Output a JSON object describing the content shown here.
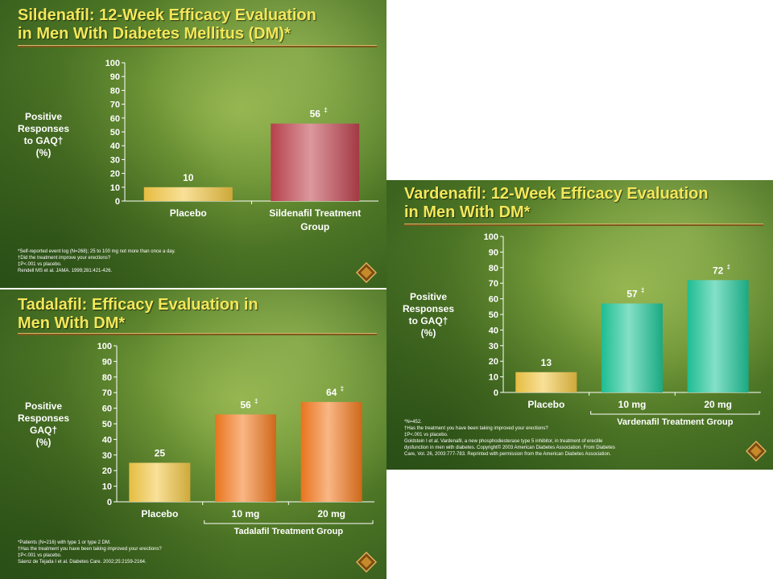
{
  "chart_data": [
    {
      "type": "bar",
      "title_lines": [
        "Sildenafil: 12-Week Efficacy Evaluation",
        "in Men With Diabetes Mellitus (DM)*"
      ],
      "ylabel_lines": [
        "Positive",
        "Responses",
        "to GAQ†",
        "(%)"
      ],
      "categories": [
        "Placebo",
        "Sildenafil Treatment Group"
      ],
      "values": [
        10,
        56
      ],
      "data_labels": [
        "10",
        "56"
      ],
      "significance": [
        "",
        "‡"
      ],
      "yticks": [
        0,
        10,
        20,
        30,
        40,
        50,
        60,
        70,
        80,
        90,
        100
      ],
      "ylim": [
        0,
        100
      ],
      "group_label": "",
      "colors": [
        "#f2c744",
        "#c0434f"
      ],
      "footnotes": [
        "*Self-reported event log (N=268); 25 to 100 mg not more than once a day.",
        "†Did the treatment improve your erections?",
        "‡P<.001 vs placebo.",
        "Rendell MS et al. JAMA. 1999;281:421-426."
      ]
    },
    {
      "type": "bar",
      "title_lines": [
        "Tadalafil: Efficacy Evaluation in",
        "Men With DM*"
      ],
      "ylabel_lines": [
        "Positive",
        "Responses",
        "GAQ†",
        "(%)"
      ],
      "categories": [
        "Placebo",
        "10 mg",
        "20 mg"
      ],
      "values": [
        25,
        56,
        64
      ],
      "data_labels": [
        "25",
        "56",
        "64"
      ],
      "significance": [
        "",
        "‡",
        "‡"
      ],
      "yticks": [
        0,
        10,
        20,
        30,
        40,
        50,
        60,
        70,
        80,
        90,
        100
      ],
      "ylim": [
        0,
        100
      ],
      "group_label": "Tadalafil Treatment Group",
      "colors": [
        "#f2c744",
        "#f47a1f",
        "#f47a1f"
      ],
      "footnotes": [
        "*Patients (N=216) with type 1 or type 2 DM.",
        "†Has the treatment you have been taking improved your erections?",
        "‡P<.001 vs placebo.",
        "Sáenz de Tejada I et al. Diabetes Care. 2002;25:2159-2164."
      ]
    },
    {
      "type": "bar",
      "title_lines": [
        "Vardenafil: 12-Week Efficacy Evaluation",
        "in Men With DM*"
      ],
      "ylabel_lines": [
        "Positive",
        "Responses",
        "to GAQ†",
        "(%)"
      ],
      "categories": [
        "Placebo",
        "10 mg",
        "20 mg"
      ],
      "values": [
        13,
        57,
        72
      ],
      "data_labels": [
        "13",
        "57",
        "72"
      ],
      "significance": [
        "",
        "‡",
        "‡"
      ],
      "yticks": [
        0,
        10,
        20,
        30,
        40,
        50,
        60,
        70,
        80,
        90,
        100
      ],
      "ylim": [
        0,
        100
      ],
      "group_label": "Vardenafil Treatment Group",
      "colors": [
        "#f2c744",
        "#1fc79a",
        "#1fc79a"
      ],
      "footnotes": [
        "*N=452.",
        "†Has the treatment you have been taking improved your erections?",
        "‡P<.001 vs placebo.",
        "Goldstein I et al. Vardenafil, a new phosphodiesterase type 5 inhibitor, in treatment of erectile",
        "dysfunction in men with diabetes. Copyright© 2003 American Diabetes Association. From Diabetes",
        "Care, Vol. 26, 2003:777-783. Reprinted with permission from the American Diabetes Association."
      ]
    }
  ]
}
